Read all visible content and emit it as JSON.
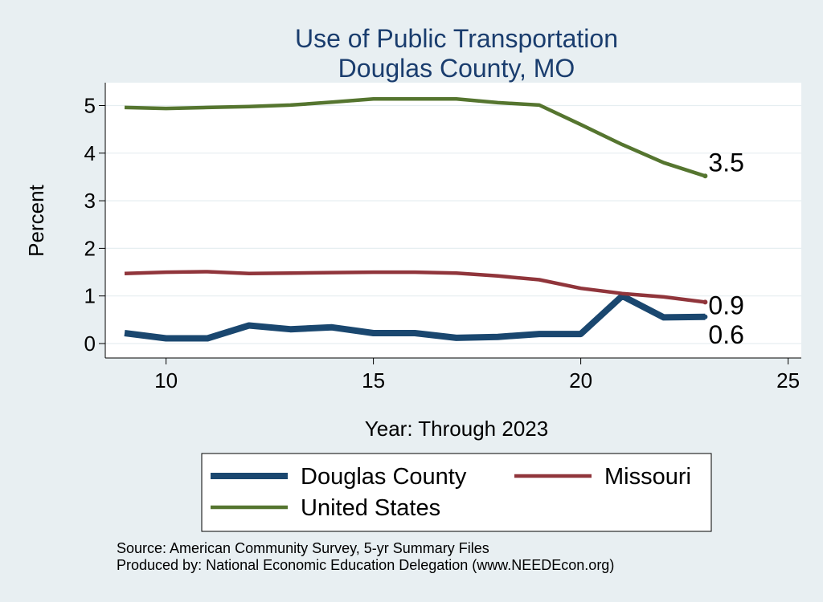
{
  "chart_data": {
    "type": "line",
    "title": "Use of Public Transportation",
    "subtitle": "Douglas County, MO",
    "xlabel": "Year: Through 2023",
    "ylabel": "Percent",
    "xlim": [
      9,
      25
    ],
    "ylim": [
      0,
      5.2
    ],
    "x_ticks": [
      "10",
      "15",
      "20",
      "25"
    ],
    "y_ticks": [
      "0",
      "1",
      "2",
      "3",
      "4",
      "5"
    ],
    "grid": true,
    "legend_position": "bottom",
    "series": [
      {
        "name": "Douglas County",
        "color": "#1a476f",
        "x": [
          9,
          10,
          11,
          12,
          13,
          14,
          15,
          16,
          17,
          18,
          19,
          20,
          21,
          22,
          23
        ],
        "values": [
          0.22,
          0.11,
          0.11,
          0.38,
          0.3,
          0.34,
          0.22,
          0.22,
          0.12,
          0.14,
          0.2,
          0.2,
          1.0,
          0.55,
          0.56
        ],
        "end_label": "0.6"
      },
      {
        "name": "Missouri",
        "color": "#90353b",
        "x": [
          9,
          10,
          11,
          12,
          13,
          14,
          15,
          16,
          17,
          18,
          19,
          20,
          21,
          22,
          23
        ],
        "values": [
          1.47,
          1.5,
          1.51,
          1.47,
          1.48,
          1.49,
          1.5,
          1.5,
          1.48,
          1.42,
          1.34,
          1.16,
          1.05,
          0.98,
          0.87
        ],
        "end_label": "0.9"
      },
      {
        "name": "United States",
        "color": "#55752f",
        "x": [
          9,
          10,
          11,
          12,
          13,
          14,
          15,
          16,
          17,
          18,
          19,
          20,
          21,
          22,
          23
        ],
        "values": [
          4.96,
          4.94,
          4.96,
          4.98,
          5.01,
          5.07,
          5.14,
          5.14,
          5.14,
          5.06,
          5.01,
          4.6,
          4.18,
          3.8,
          3.52
        ],
        "end_label": "3.5"
      }
    ],
    "source_lines": [
      "Source: American Community Survey, 5-yr Summary Files",
      "Produced by: National Economic Education Delegation (www.NEEDEcon.org)"
    ]
  }
}
